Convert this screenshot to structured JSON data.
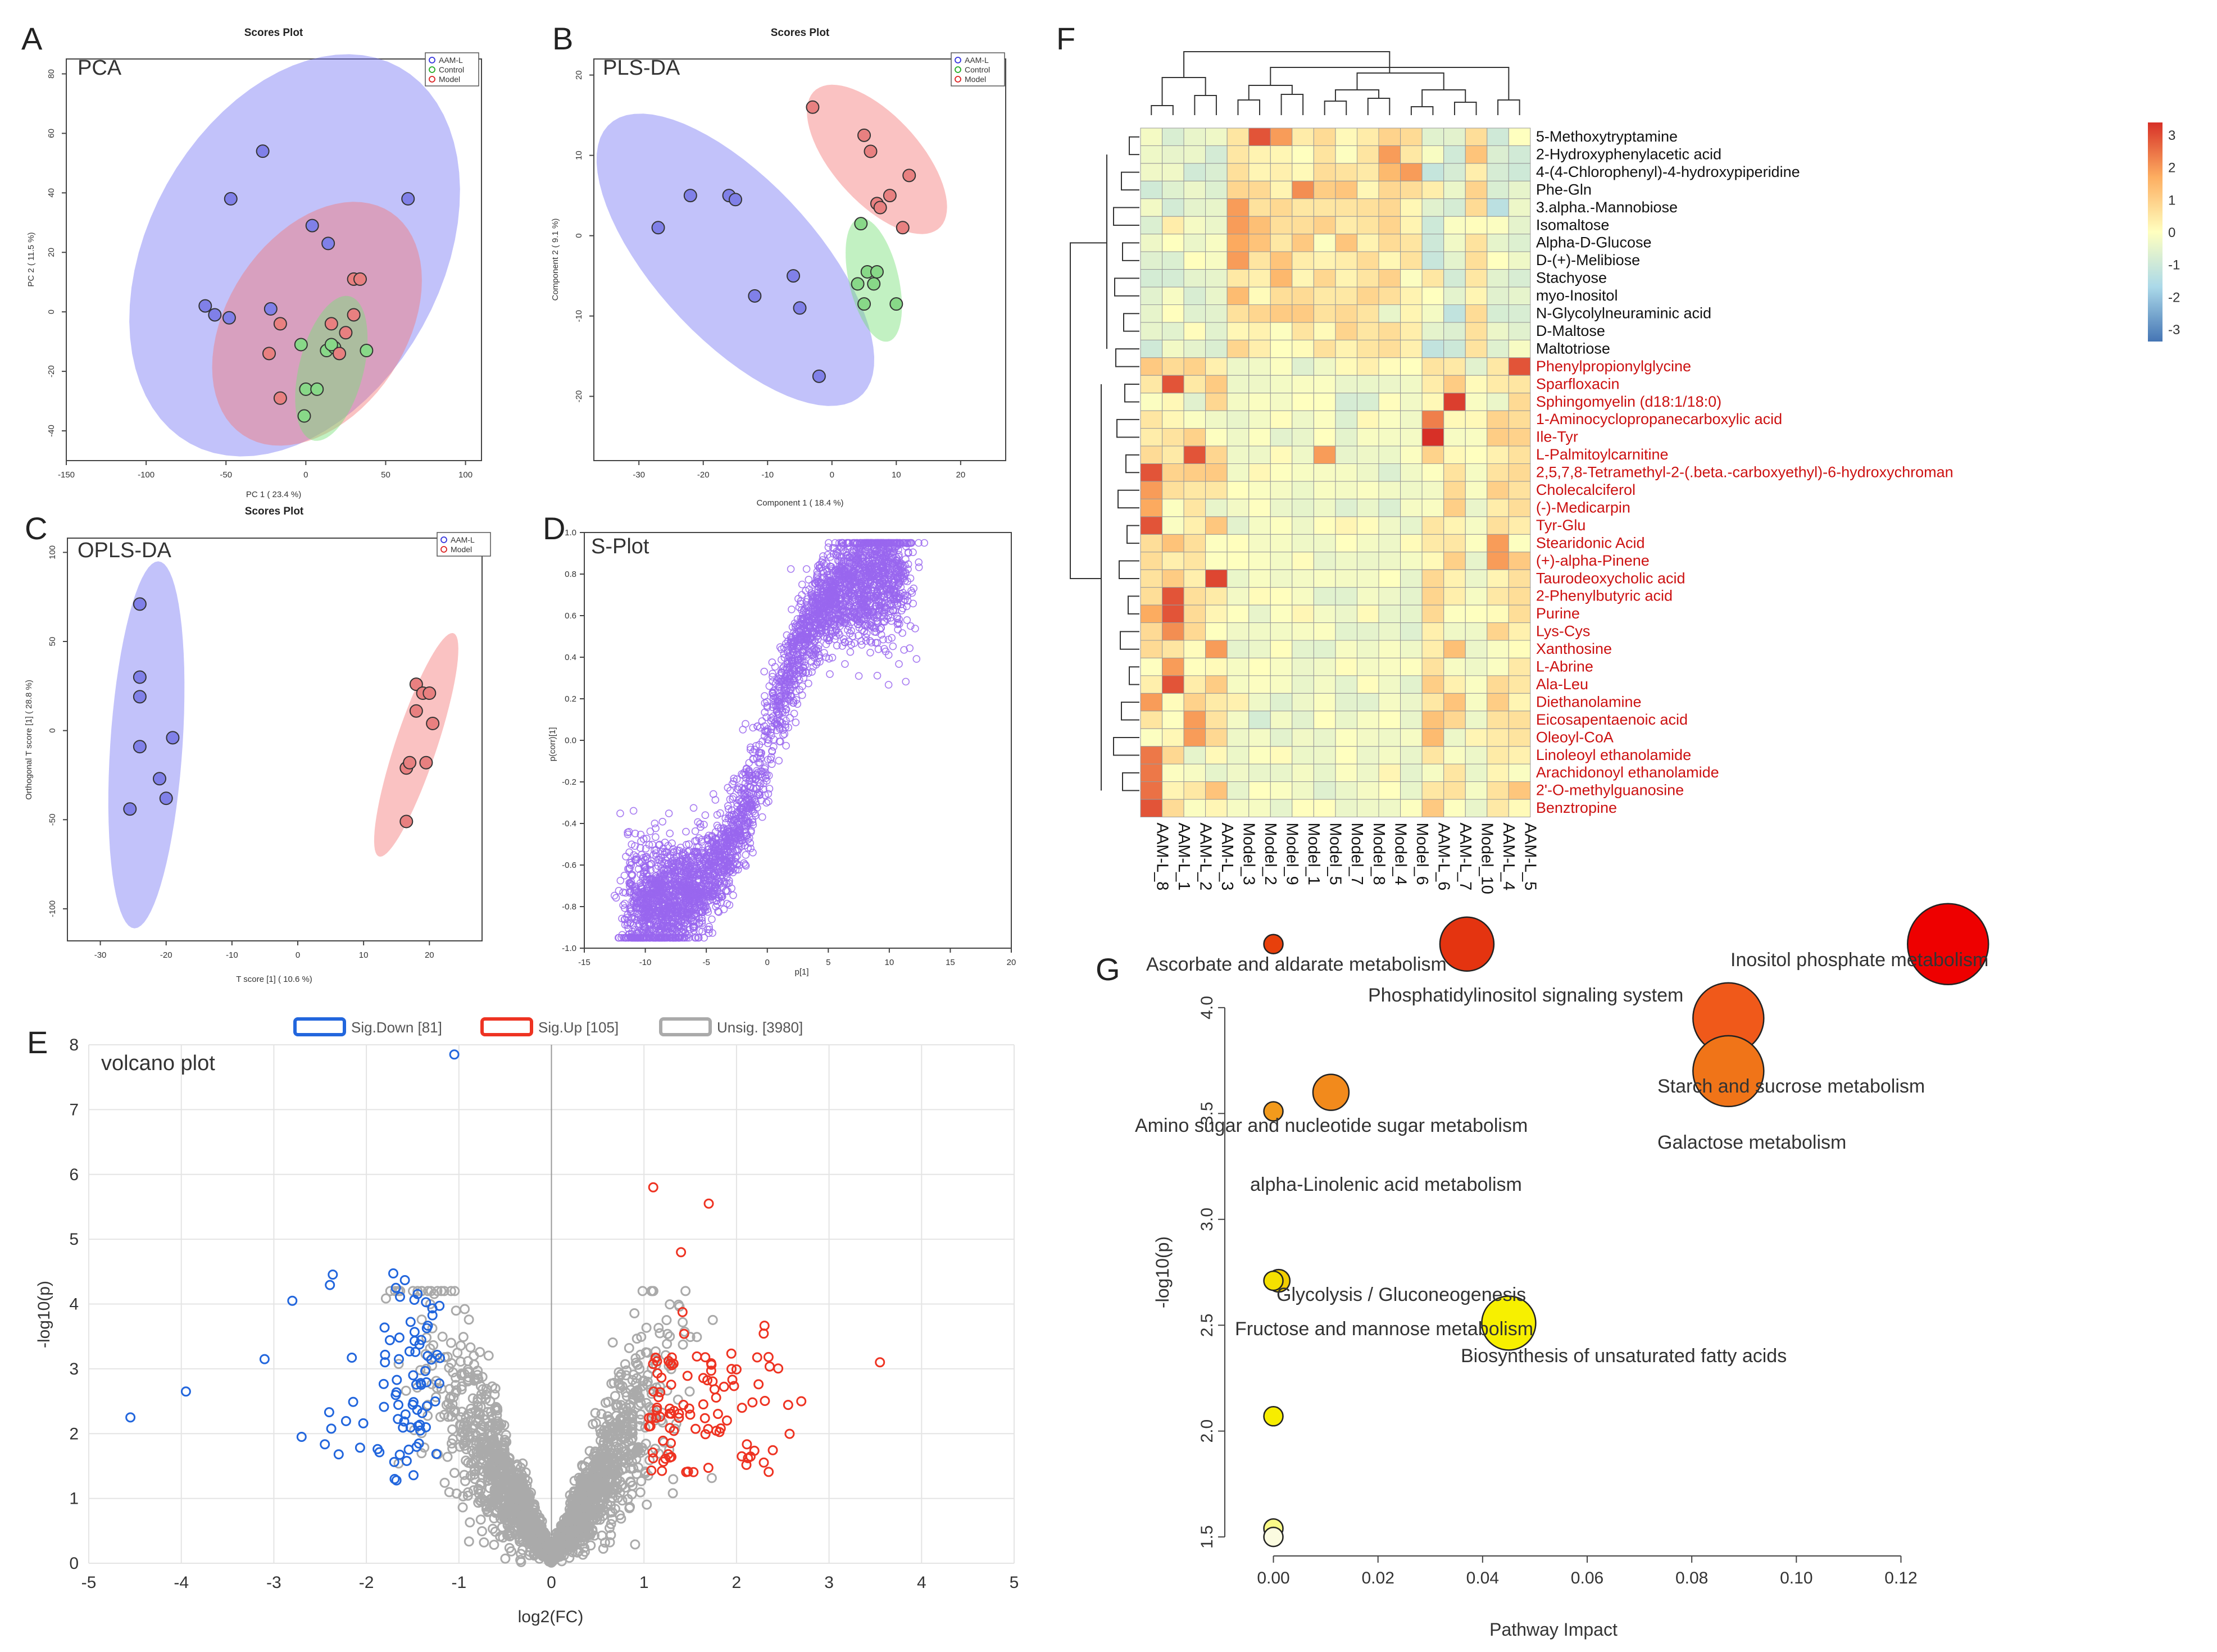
{
  "panels": {
    "A": {
      "letter": "A",
      "title": "Scores Plot",
      "method": "PCA"
    },
    "B": {
      "letter": "B",
      "title": "Scores Plot",
      "method": "PLS-DA"
    },
    "C": {
      "letter": "C",
      "title": "Scores Plot",
      "method": "OPLS-DA"
    },
    "D": {
      "letter": "D",
      "method": "S-Plot"
    },
    "E": {
      "letter": "E",
      "method": "volcano plot"
    },
    "F": {
      "letter": "F"
    },
    "G": {
      "letter": "G"
    }
  },
  "chart_data": [
    {
      "id": "A",
      "type": "scatter",
      "title": "Scores Plot",
      "xlabel": "PC 1 ( 23.4 %)",
      "ylabel": "PC 2 ( 11.5 %)",
      "xlim": [
        -150,
        110
      ],
      "ylim": [
        -50,
        85
      ],
      "xticks": [
        -150,
        -100,
        -50,
        0,
        50,
        100
      ],
      "yticks": [
        -40,
        -20,
        0,
        20,
        40,
        60,
        80
      ],
      "legend": [
        "AAM-L",
        "Control",
        "Model"
      ],
      "colors": {
        "AAM-L": "#3333dd",
        "Control": "#22aa22",
        "Model": "#dd2222"
      },
      "series": [
        {
          "name": "AAM-L",
          "x": [
            -27,
            -47,
            -63,
            -57,
            -22,
            4,
            14,
            64,
            -48
          ],
          "y": [
            54,
            38,
            2,
            -1,
            1,
            29,
            23,
            38,
            -2
          ]
        },
        {
          "name": "Control",
          "x": [
            -3,
            13,
            18,
            38,
            0,
            7,
            16,
            -1
          ],
          "y": [
            -11,
            -13,
            -12,
            -13,
            -26,
            -26,
            -11,
            -35
          ]
        },
        {
          "name": "Model",
          "x": [
            30,
            34,
            30,
            -23,
            -16,
            16,
            25,
            21,
            -16
          ],
          "y": [
            11,
            11,
            -1,
            -14,
            -4,
            -4,
            -7,
            -14,
            -29
          ]
        }
      ],
      "ellipses": [
        {
          "name": "AAM-L",
          "cx": -7,
          "cy": 19,
          "rx": 107,
          "ry": 62,
          "angle": 18
        },
        {
          "name": "Model",
          "cx": 7,
          "cy": -4,
          "rx": 68,
          "ry": 37,
          "angle": 18
        },
        {
          "name": "Control",
          "cx": 16,
          "cy": -19,
          "rx": 28,
          "ry": 18,
          "angle": 50
        }
      ]
    },
    {
      "id": "B",
      "type": "scatter",
      "title": "Scores Plot",
      "xlabel": "Component 1 ( 18.4 %)",
      "ylabel": "Component 2 ( 9.1 %)",
      "xlim": [
        -37,
        27
      ],
      "ylim": [
        -28,
        22
      ],
      "xticks": [
        -30,
        -20,
        -10,
        0,
        10,
        20
      ],
      "yticks": [
        -20,
        -10,
        0,
        10,
        20
      ],
      "legend": [
        "AAM-L",
        "Control",
        "Model"
      ],
      "colors": {
        "AAM-L": "#3333dd",
        "Control": "#22aa22",
        "Model": "#dd2222"
      },
      "series": [
        {
          "name": "AAM-L",
          "x": [
            -22,
            -16,
            -15,
            -27,
            -12,
            -6,
            -5,
            -2
          ],
          "y": [
            5,
            5,
            4.5,
            1,
            -7.5,
            -5,
            -9,
            -17.5
          ]
        },
        {
          "name": "Control",
          "x": [
            4.5,
            5.5,
            7,
            6.5,
            4,
            5,
            10
          ],
          "y": [
            1.5,
            -4.5,
            -4.5,
            -6,
            -6,
            -8.5,
            -8.5
          ]
        },
        {
          "name": "Model",
          "x": [
            -3,
            5,
            6,
            12,
            7,
            7.5,
            9,
            11
          ],
          "y": [
            16,
            12.5,
            10.5,
            7.5,
            4,
            3.5,
            5,
            1
          ]
        }
      ],
      "ellipses": [
        {
          "name": "AAM-L",
          "cx": -15,
          "cy": -3,
          "rx": 26,
          "ry": 11,
          "angle": -38
        },
        {
          "name": "Model",
          "cx": 7,
          "cy": 9.5,
          "rx": 13,
          "ry": 6,
          "angle": -38
        },
        {
          "name": "Control",
          "cx": 6.5,
          "cy": -5.5,
          "rx": 8,
          "ry": 3.8,
          "angle": -72
        }
      ]
    },
    {
      "id": "C",
      "type": "scatter",
      "title": "Scores Plot",
      "xlabel": "T score [1] ( 10.6 %)",
      "ylabel": "Orthogonal T score [1] ( 28.8 %)",
      "xlim": [
        -35,
        28
      ],
      "ylim": [
        -118,
        108
      ],
      "xticks": [
        -30,
        -20,
        -10,
        0,
        10,
        20
      ],
      "yticks": [
        -100,
        -50,
        0,
        50,
        100
      ],
      "legend": [
        "AAM-L",
        "Model"
      ],
      "colors": {
        "AAM-L": "#3333dd",
        "Model": "#dd2222"
      },
      "series": [
        {
          "name": "AAM-L",
          "x": [
            -24,
            -24,
            -24,
            -19,
            -24,
            -21,
            -20,
            -25.5
          ],
          "y": [
            71,
            30,
            19,
            -4,
            -9,
            -27,
            -38,
            -44
          ]
        },
        {
          "name": "Model",
          "x": [
            18,
            19,
            20,
            18,
            19.5,
            20.5,
            16.5,
            17,
            16.5
          ],
          "y": [
            26,
            21,
            21,
            11,
            -18,
            4,
            -21,
            -18,
            -51
          ]
        }
      ],
      "ellipses": [
        {
          "name": "AAM-L",
          "cx": -23,
          "cy": -8,
          "rx": 103,
          "ry": 5.5,
          "angle": 89
        },
        {
          "name": "Model",
          "cx": 18,
          "cy": -8,
          "rx": 63,
          "ry": 3.3,
          "angle": 85
        }
      ]
    },
    {
      "id": "D",
      "type": "scatter",
      "title": "S-Plot",
      "xlabel": "p[1]",
      "ylabel": "p(corr)[1]",
      "xlim": [
        -15,
        20
      ],
      "ylim": [
        -1.0,
        1.0
      ],
      "xticks": [
        -15,
        -10,
        -5,
        0,
        5,
        10,
        15,
        20
      ],
      "yticks": [
        -1.0,
        -0.8,
        -0.6,
        -0.4,
        -0.2,
        0.0,
        0.2,
        0.4,
        0.6,
        0.8,
        1.0
      ],
      "n_points": 3600,
      "color": "#9966ee"
    },
    {
      "id": "E",
      "type": "scatter",
      "title": "volcano plot",
      "xlabel": "log2(FC)",
      "ylabel": "-log10(p)",
      "xlim": [
        -5,
        5
      ],
      "ylim": [
        0,
        8
      ],
      "xticks": [
        -5,
        -4,
        -3,
        -2,
        -1,
        0,
        1,
        2,
        3,
        4,
        5
      ],
      "yticks": [
        0,
        1,
        2,
        3,
        4,
        5,
        6,
        7,
        8
      ],
      "legend": [
        {
          "label": "Sig.Down [81]",
          "color": "#2266dd"
        },
        {
          "label": "Sig.Up [105]",
          "color": "#ee3322"
        },
        {
          "label": "Unsig. [3980]",
          "color": "#aaaaaa"
        }
      ],
      "counts": {
        "down": 81,
        "up": 105,
        "unsig": 3980
      },
      "highlights": [
        {
          "x": -1.05,
          "y": 7.85,
          "g": "down"
        },
        {
          "x": -4.55,
          "y": 2.25,
          "g": "down"
        },
        {
          "x": -3.95,
          "y": 2.65,
          "g": "down"
        },
        {
          "x": -2.8,
          "y": 4.05,
          "g": "down"
        },
        {
          "x": -3.1,
          "y": 3.15,
          "g": "down"
        },
        {
          "x": -2.7,
          "y": 1.95,
          "g": "down"
        },
        {
          "x": 1.1,
          "y": 5.8,
          "g": "up"
        },
        {
          "x": 1.7,
          "y": 5.55,
          "g": "up"
        },
        {
          "x": 1.4,
          "y": 4.8,
          "g": "up"
        },
        {
          "x": 3.55,
          "y": 3.1,
          "g": "up"
        },
        {
          "x": 2.7,
          "y": 2.5,
          "g": "up"
        }
      ]
    },
    {
      "id": "F",
      "type": "heatmap",
      "columns": [
        "AAM-L_8",
        "AAM-L_1",
        "AAM-L_2",
        "AAM-L_3",
        "Model_3",
        "Model_2",
        "Model_9",
        "Model_1",
        "Model_5",
        "Model_7",
        "Model_8",
        "Model_4",
        "Model_6",
        "AAM-L_6",
        "AAM-L_7",
        "Model_10",
        "AAM-L_4",
        "AAM-L_5"
      ],
      "rows": [
        "5-Methoxytryptamine",
        "2-Hydroxyphenylacetic acid",
        "4-(4-Chlorophenyl)-4-hydroxypiperidine",
        "Phe-Gln",
        "3.alpha.-Mannobiose",
        "Isomaltose",
        "Alpha-D-Glucose",
        "D-(+)-Melibiose",
        "Stachyose",
        "myo-Inositol",
        "N-Glycolylneuraminic acid",
        "D-Maltose",
        "Maltotriose",
        "Phenylpropionylglycine",
        "Sparfloxacin",
        "Sphingomyelin (d18:1/18:0)",
        "1-Aminocyclopropanecarboxylic acid",
        "Ile-Tyr",
        "L-Palmitoylcarnitine",
        "2,5,7,8-Tetramethyl-2-(.beta.-carboxyethyl)-6-hydroxychroman",
        "Cholecalciferol",
        "(-)-Medicarpin",
        "Tyr-Glu",
        "Stearidonic Acid",
        "(+)-alpha-Pinene",
        "Taurodeoxycholic acid",
        "2-Phenylbutyric acid",
        "Purine",
        "Lys-Cys",
        "Xanthosine",
        "L-Abrine",
        "Ala-Leu",
        "Diethanolamine",
        "Eicosapentaenoic acid",
        "Oleoyl-CoA",
        "Linoleoyl ethanolamide",
        "Arachidonoyl ethanolamide",
        "2'-O-methylguanosine",
        "Benztropine"
      ],
      "row_color_groups": {
        "black_first": 13,
        "black_color": "#111111",
        "red_color": "#cc1111"
      },
      "colorbar": {
        "ticks": [
          3,
          2,
          1,
          0,
          -1,
          -2,
          -3
        ],
        "high": "#d73027",
        "mid": "#ffffbf",
        "low": "#4575b4"
      },
      "highlights": [
        {
          "r": 0,
          "c": 5,
          "v": 3
        },
        {
          "r": 0,
          "c": 6,
          "v": 2
        },
        {
          "r": 1,
          "c": 11,
          "v": 2
        },
        {
          "r": 2,
          "c": 11,
          "v": 1.5
        },
        {
          "r": 2,
          "c": 12,
          "v": 2
        },
        {
          "r": 3,
          "c": 7,
          "v": 2.2
        },
        {
          "r": 4,
          "c": 4,
          "v": 2
        },
        {
          "r": 5,
          "c": 4,
          "v": 2
        },
        {
          "r": 6,
          "c": 4,
          "v": 1.8
        },
        {
          "r": 7,
          "c": 4,
          "v": 2
        },
        {
          "r": 13,
          "c": 17,
          "v": 3
        },
        {
          "r": 14,
          "c": 1,
          "v": 3
        },
        {
          "r": 15,
          "c": 14,
          "v": 3.3
        },
        {
          "r": 16,
          "c": 13,
          "v": 2.4
        },
        {
          "r": 17,
          "c": 13,
          "v": 3.5
        },
        {
          "r": 18,
          "c": 2,
          "v": 3
        },
        {
          "r": 18,
          "c": 8,
          "v": 2
        },
        {
          "r": 19,
          "c": 0,
          "v": 3
        },
        {
          "r": 20,
          "c": 0,
          "v": 2
        },
        {
          "r": 21,
          "c": 0,
          "v": 1.8
        },
        {
          "r": 22,
          "c": 0,
          "v": 3
        },
        {
          "r": 23,
          "c": 16,
          "v": 2
        },
        {
          "r": 24,
          "c": 16,
          "v": 2
        },
        {
          "r": 25,
          "c": 3,
          "v": 3.2
        },
        {
          "r": 26,
          "c": 1,
          "v": 3
        },
        {
          "r": 27,
          "c": 1,
          "v": 3
        },
        {
          "r": 28,
          "c": 1,
          "v": 2.2
        },
        {
          "r": 29,
          "c": 3,
          "v": 2
        },
        {
          "r": 30,
          "c": 1,
          "v": 2
        },
        {
          "r": 31,
          "c": 1,
          "v": 3
        },
        {
          "r": 32,
          "c": 0,
          "v": 2
        },
        {
          "r": 33,
          "c": 2,
          "v": 2
        },
        {
          "r": 34,
          "c": 2,
          "v": 2
        },
        {
          "r": 35,
          "c": 0,
          "v": 2.5
        },
        {
          "r": 36,
          "c": 0,
          "v": 2.5
        },
        {
          "r": 37,
          "c": 0,
          "v": 2.6
        },
        {
          "r": 38,
          "c": 0,
          "v": 3
        }
      ]
    },
    {
      "id": "G",
      "type": "scatter",
      "subtype": "bubble",
      "xlabel": "Pathway Impact",
      "ylabel": "-log10(p)",
      "xlim": [
        -0.005,
        0.125
      ],
      "ylim": [
        1.45,
        4.05
      ],
      "xticks": [
        0.0,
        0.02,
        0.04,
        0.06,
        0.08,
        0.1,
        0.12
      ],
      "yticks": [
        1.5,
        2.0,
        2.5,
        3.0,
        3.5,
        4.0
      ],
      "points": [
        {
          "label": "Ascorbate and aldarate metabolism",
          "x": 0.0,
          "y": 4.3,
          "r": 17,
          "color": "#e8400c"
        },
        {
          "label": "Phosphatidylinositol signaling system",
          "x": 0.037,
          "y": 4.3,
          "r": 48,
          "color": "#e43410"
        },
        {
          "label": "Inositol phosphate metabolism",
          "x": 0.129,
          "y": 4.3,
          "r": 72,
          "color": "#ee0000"
        },
        {
          "label": "Starch and sucrose metabolism",
          "x": 0.087,
          "y": 3.95,
          "r": 63,
          "color": "#f0591a"
        },
        {
          "label": "Galactose metabolism",
          "x": 0.087,
          "y": 3.7,
          "r": 63,
          "color": "#f07418"
        },
        {
          "label": "Amino sugar and nucleotide sugar metabolism",
          "x": 0.011,
          "y": 3.6,
          "r": 32,
          "color": "#f28a1c"
        },
        {
          "label": "alpha-Linolenic acid metabolism",
          "x": 0.0,
          "y": 3.51,
          "r": 17,
          "color": "#f29a1c"
        },
        {
          "label": "Glycolysis / Gluconeogenesis",
          "x": 0.001,
          "y": 2.71,
          "r": 20,
          "color": "#f2cd00"
        },
        {
          "label": "Fructose and mannose metabolism",
          "x": 0.0,
          "y": 2.71,
          "r": 17,
          "color": "#f5e000"
        },
        {
          "label": "Biosynthesis of unsaturated fatty acids",
          "x": 0.045,
          "y": 2.51,
          "r": 48,
          "color": "#f7f000"
        },
        {
          "label": "",
          "x": 0.0,
          "y": 2.07,
          "r": 17,
          "color": "#f7ed00"
        },
        {
          "label": "",
          "x": 0.0,
          "y": 1.54,
          "r": 17,
          "color": "#fafa88"
        },
        {
          "label": "",
          "x": 0.0,
          "y": 1.5,
          "r": 17,
          "color": "#fbfbe0"
        }
      ]
    }
  ]
}
